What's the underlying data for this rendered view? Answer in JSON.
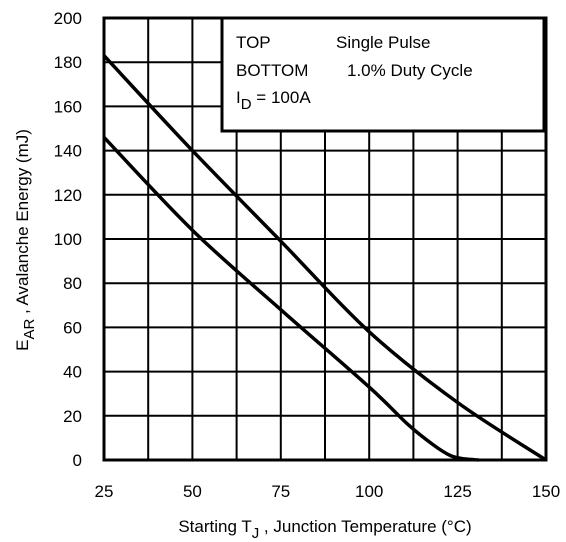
{
  "chart_data": {
    "type": "line",
    "xlabel": {
      "pre": "Starting T",
      "sub": "J",
      "post": " , Junction Temperature (°C)"
    },
    "ylabel": {
      "pre": "E",
      "sub": "AR",
      "post": " , Avalanche Energy (mJ)"
    },
    "xlim": [
      25,
      150
    ],
    "ylim": [
      0,
      200
    ],
    "x_ticks": [
      "25",
      "50",
      "75",
      "100",
      "125",
      "150"
    ],
    "y_ticks": [
      "0",
      "20",
      "40",
      "60",
      "80",
      "100",
      "120",
      "140",
      "160",
      "180",
      "200"
    ],
    "grid": true,
    "legend": {
      "placement": "top-right",
      "row1_label": "TOP",
      "row1_value": "Single Pulse",
      "row2_label": "BOTTOM",
      "row2_value": "1.0% Duty Cycle",
      "row3": {
        "pre": "I",
        "sub": "D",
        "post": " = 100A"
      }
    },
    "series": [
      {
        "x": [
          25,
          50,
          75,
          100,
          125,
          150
        ],
        "y": [
          183,
          140,
          99,
          58,
          26,
          0
        ]
      },
      {
        "x": [
          25,
          50,
          75,
          100,
          111,
          118,
          123,
          127,
          131
        ],
        "y": [
          146,
          104,
          68,
          33,
          16,
          7,
          2,
          0.5,
          0
        ]
      }
    ],
    "colors": {
      "line": "#000000",
      "grid": "#000000"
    }
  }
}
